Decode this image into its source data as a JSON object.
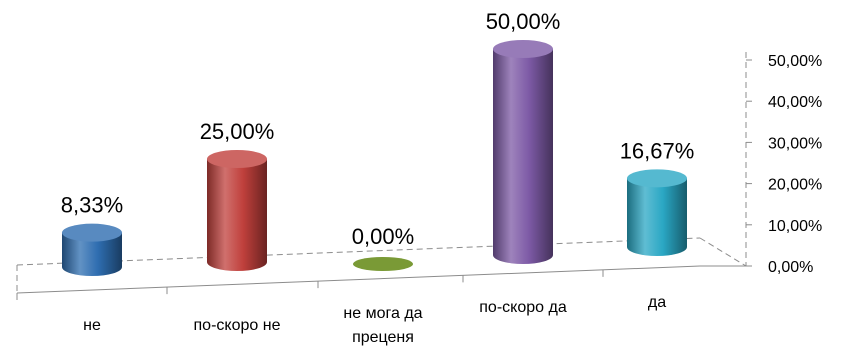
{
  "chart_data": {
    "type": "bar",
    "categories": [
      "не",
      "по-скоро не",
      "не мога да преценя",
      "по-скоро да",
      "да"
    ],
    "category_label_lines": [
      [
        "не"
      ],
      [
        "по-скоро не"
      ],
      [
        "не мога да",
        "преценя"
      ],
      [
        "по-скоро да"
      ],
      [
        "да"
      ]
    ],
    "values": [
      8.33,
      25.0,
      0.0,
      50.0,
      16.67
    ],
    "data_labels": [
      "8,33%",
      "25,00%",
      "0,00%",
      "50,00%",
      "16,67%"
    ],
    "bar_colors": [
      "#2e6db0",
      "#c0403c",
      "#7a9a36",
      "#7d5aa6",
      "#2aa7c4"
    ],
    "y_ticks": [
      "0,00%",
      "10,00%",
      "20,00%",
      "30,00%",
      "40,00%",
      "50,00%"
    ],
    "ylim": [
      0,
      50
    ],
    "bar_style": "3d-cylinder",
    "grid": false,
    "legend": "none",
    "title": "",
    "xlabel": "",
    "ylabel": ""
  }
}
